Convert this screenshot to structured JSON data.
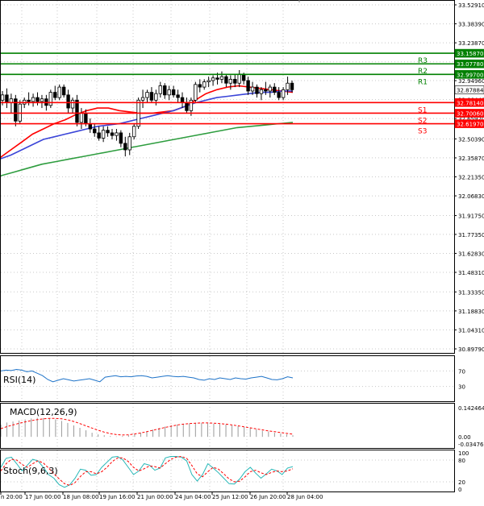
{
  "chart_data": [
    {
      "type": "line",
      "name": "price-panel",
      "yticks": [
        33.5291,
        33.3839,
        33.2387,
        33.0935,
        32.9496,
        32.8044,
        32.6592,
        32.5039,
        32.3587,
        32.2135,
        32.0683,
        31.9175,
        31.7735,
        31.6283,
        31.4831,
        31.3335,
        31.1883,
        31.0431,
        30.8979
      ],
      "ylim": [
        30.8979,
        33.5291
      ],
      "price_badges": [
        {
          "text": "33.15870",
          "value": 33.1587,
          "color": "#008000"
        },
        {
          "text": "33.07780",
          "value": 33.0778,
          "color": "#008000"
        },
        {
          "text": "32.99700",
          "value": 32.997,
          "color": "#008000"
        },
        {
          "text": "32.87884",
          "value": 32.87884,
          "color": "#ffffff"
        },
        {
          "text": "32.78140",
          "value": 32.7814,
          "color": "#ff0000"
        },
        {
          "text": "32.70060",
          "value": 32.7006,
          "color": "#ff0000"
        },
        {
          "text": "32.61970",
          "value": 32.6197,
          "color": "#ff0000"
        }
      ],
      "levels": [
        {
          "label": "R3",
          "value": 33.1587,
          "color": "#008000"
        },
        {
          "label": "R2",
          "value": 33.0778,
          "color": "#008000"
        },
        {
          "label": "R1",
          "value": 32.997,
          "color": "#008000"
        },
        {
          "label": "S1",
          "value": 32.7814,
          "color": "#ff0000"
        },
        {
          "label": "S2",
          "value": 32.7006,
          "color": "#ff0000"
        },
        {
          "label": "S3",
          "value": 32.6197,
          "color": "#ff0000"
        }
      ],
      "candles": [
        {
          "o": 32.8,
          "h": 32.87,
          "l": 32.76,
          "c": 32.84
        },
        {
          "o": 32.84,
          "h": 32.89,
          "l": 32.74,
          "c": 32.78
        },
        {
          "o": 32.78,
          "h": 32.85,
          "l": 32.7,
          "c": 32.81
        },
        {
          "o": 32.81,
          "h": 32.84,
          "l": 32.6,
          "c": 32.64
        },
        {
          "o": 32.64,
          "h": 32.8,
          "l": 32.62,
          "c": 32.77
        },
        {
          "o": 32.77,
          "h": 32.82,
          "l": 32.74,
          "c": 32.8
        },
        {
          "o": 32.8,
          "h": 32.86,
          "l": 32.76,
          "c": 32.79
        },
        {
          "o": 32.79,
          "h": 32.85,
          "l": 32.75,
          "c": 32.82
        },
        {
          "o": 32.82,
          "h": 32.86,
          "l": 32.76,
          "c": 32.79
        },
        {
          "o": 32.79,
          "h": 32.84,
          "l": 32.74,
          "c": 32.81
        },
        {
          "o": 32.81,
          "h": 32.84,
          "l": 32.72,
          "c": 32.76
        },
        {
          "o": 32.76,
          "h": 32.88,
          "l": 32.74,
          "c": 32.86
        },
        {
          "o": 32.86,
          "h": 32.91,
          "l": 32.8,
          "c": 32.82
        },
        {
          "o": 32.82,
          "h": 32.92,
          "l": 32.8,
          "c": 32.9
        },
        {
          "o": 32.9,
          "h": 32.92,
          "l": 32.82,
          "c": 32.84
        },
        {
          "o": 32.84,
          "h": 32.88,
          "l": 32.7,
          "c": 32.74
        },
        {
          "o": 32.74,
          "h": 32.82,
          "l": 32.7,
          "c": 32.8
        },
        {
          "o": 32.8,
          "h": 32.84,
          "l": 32.6,
          "c": 32.63
        },
        {
          "o": 32.63,
          "h": 32.74,
          "l": 32.58,
          "c": 32.7
        },
        {
          "o": 32.7,
          "h": 32.73,
          "l": 32.6,
          "c": 32.62
        },
        {
          "o": 32.62,
          "h": 32.66,
          "l": 32.55,
          "c": 32.58
        },
        {
          "o": 32.58,
          "h": 32.62,
          "l": 32.52,
          "c": 32.55
        },
        {
          "o": 32.55,
          "h": 32.6,
          "l": 32.49,
          "c": 32.51
        },
        {
          "o": 32.51,
          "h": 32.6,
          "l": 32.48,
          "c": 32.57
        },
        {
          "o": 32.57,
          "h": 32.6,
          "l": 32.52,
          "c": 32.55
        },
        {
          "o": 32.55,
          "h": 32.58,
          "l": 32.5,
          "c": 32.53
        },
        {
          "o": 32.53,
          "h": 32.58,
          "l": 32.49,
          "c": 32.55
        },
        {
          "o": 32.55,
          "h": 32.57,
          "l": 32.44,
          "c": 32.47
        },
        {
          "o": 32.47,
          "h": 32.52,
          "l": 32.37,
          "c": 32.42
        },
        {
          "o": 32.42,
          "h": 32.55,
          "l": 32.38,
          "c": 32.52
        },
        {
          "o": 32.52,
          "h": 32.62,
          "l": 32.5,
          "c": 32.6
        },
        {
          "o": 32.6,
          "h": 32.82,
          "l": 32.58,
          "c": 32.8
        },
        {
          "o": 32.8,
          "h": 32.88,
          "l": 32.74,
          "c": 32.82
        },
        {
          "o": 32.82,
          "h": 32.88,
          "l": 32.78,
          "c": 32.86
        },
        {
          "o": 32.86,
          "h": 32.9,
          "l": 32.78,
          "c": 32.8
        },
        {
          "o": 32.8,
          "h": 32.88,
          "l": 32.76,
          "c": 32.85
        },
        {
          "o": 32.85,
          "h": 32.94,
          "l": 32.82,
          "c": 32.91
        },
        {
          "o": 32.91,
          "h": 32.93,
          "l": 32.81,
          "c": 32.84
        },
        {
          "o": 32.84,
          "h": 32.91,
          "l": 32.8,
          "c": 32.88
        },
        {
          "o": 32.88,
          "h": 32.91,
          "l": 32.82,
          "c": 32.84
        },
        {
          "o": 32.84,
          "h": 32.88,
          "l": 32.78,
          "c": 32.82
        },
        {
          "o": 32.82,
          "h": 32.86,
          "l": 32.74,
          "c": 32.78
        },
        {
          "o": 32.78,
          "h": 32.82,
          "l": 32.7,
          "c": 32.72
        },
        {
          "o": 32.72,
          "h": 32.82,
          "l": 32.68,
          "c": 32.8
        },
        {
          "o": 32.8,
          "h": 32.94,
          "l": 32.78,
          "c": 32.92
        },
        {
          "o": 32.92,
          "h": 32.96,
          "l": 32.86,
          "c": 32.9
        },
        {
          "o": 32.9,
          "h": 32.96,
          "l": 32.88,
          "c": 32.94
        },
        {
          "o": 32.94,
          "h": 32.98,
          "l": 32.9,
          "c": 32.95
        },
        {
          "o": 32.95,
          "h": 32.99,
          "l": 32.91,
          "c": 32.97
        },
        {
          "o": 32.97,
          "h": 33.01,
          "l": 32.92,
          "c": 32.96
        },
        {
          "o": 32.96,
          "h": 33.02,
          "l": 32.93,
          "c": 32.98
        },
        {
          "o": 32.98,
          "h": 33.0,
          "l": 32.9,
          "c": 32.93
        },
        {
          "o": 32.93,
          "h": 32.99,
          "l": 32.88,
          "c": 32.96
        },
        {
          "o": 32.96,
          "h": 33.0,
          "l": 32.9,
          "c": 32.93
        },
        {
          "o": 32.93,
          "h": 33.03,
          "l": 32.9,
          "c": 33.0
        },
        {
          "o": 33.0,
          "h": 33.01,
          "l": 32.92,
          "c": 32.95
        },
        {
          "o": 32.95,
          "h": 32.98,
          "l": 32.84,
          "c": 32.87
        },
        {
          "o": 32.87,
          "h": 32.94,
          "l": 32.84,
          "c": 32.9
        },
        {
          "o": 32.9,
          "h": 32.92,
          "l": 32.82,
          "c": 32.85
        },
        {
          "o": 32.85,
          "h": 32.9,
          "l": 32.8,
          "c": 32.88
        },
        {
          "o": 32.88,
          "h": 32.94,
          "l": 32.84,
          "c": 32.87
        },
        {
          "o": 32.87,
          "h": 32.92,
          "l": 32.82,
          "c": 32.9
        },
        {
          "o": 32.9,
          "h": 32.93,
          "l": 32.84,
          "c": 32.86
        },
        {
          "o": 32.86,
          "h": 32.9,
          "l": 32.8,
          "c": 32.82
        },
        {
          "o": 32.82,
          "h": 32.9,
          "l": 32.8,
          "c": 32.88
        },
        {
          "o": 32.88,
          "h": 32.98,
          "l": 32.84,
          "c": 32.93
        },
        {
          "o": 32.93,
          "h": 32.95,
          "l": 32.86,
          "c": 32.88
        }
      ],
      "series": [
        {
          "name": "",
          "color": "#ff0000",
          "values": [
            32.36,
            32.42,
            32.48,
            32.54,
            32.58,
            32.62,
            32.65,
            32.69,
            32.72,
            32.74,
            32.74,
            32.72,
            32.71,
            32.7,
            32.7,
            32.71,
            32.72,
            32.75,
            32.8,
            32.85,
            32.88,
            32.9,
            32.91,
            32.9,
            32.89,
            32.88,
            32.87,
            32.86
          ]
        },
        {
          "name": "",
          "color": "#3b45d8",
          "values": [
            32.35,
            32.38,
            32.42,
            32.46,
            32.5,
            32.52,
            32.54,
            32.56,
            32.58,
            32.6,
            32.61,
            32.62,
            32.64,
            32.66,
            32.68,
            32.7,
            32.72,
            32.75,
            32.78,
            32.8,
            32.82,
            32.83,
            32.84,
            32.85,
            32.86,
            32.86,
            32.87,
            32.87
          ]
        },
        {
          "name": "",
          "color": "#2e9d3f",
          "values": [
            32.22,
            32.25,
            32.28,
            32.31,
            32.33,
            32.35,
            32.37,
            32.39,
            32.41,
            32.43,
            32.45,
            32.47,
            32.49,
            32.51,
            32.53,
            32.55,
            32.57,
            32.59,
            32.6,
            32.61,
            32.62,
            32.63
          ]
        }
      ],
      "ma_x_extent": [
        0,
        363
      ]
    },
    {
      "type": "line",
      "name": "rsi-panel",
      "title": "RSI(14)",
      "yticks": [
        70,
        30
      ],
      "ylim": [
        0,
        100
      ],
      "series": [
        {
          "name": "RSI(14)",
          "color": "#1e73c8",
          "values": [
            70,
            72,
            71,
            74,
            72,
            68,
            70,
            64,
            58,
            48,
            42,
            46,
            50,
            47,
            44,
            46,
            48,
            50,
            46,
            42,
            54,
            56,
            58,
            55,
            56,
            55,
            57,
            58,
            56,
            52,
            54,
            56,
            58,
            56,
            55,
            56,
            54,
            52,
            48,
            46,
            50,
            48,
            52,
            50,
            48,
            52,
            50,
            49,
            52,
            54,
            56,
            52,
            48,
            47,
            50,
            55,
            52
          ]
        }
      ]
    },
    {
      "type": "bar",
      "name": "macd-panel",
      "title": "MACD(12,26,9)",
      "yticks": [
        0.142464,
        0.0,
        -0.034769
      ],
      "ylim": [
        -0.034769,
        0.142464
      ],
      "tick_labels": [
        "0.142464",
        "0.00",
        "-0.034769"
      ],
      "histogram": [
        0.06,
        0.07,
        0.075,
        0.08,
        0.085,
        0.09,
        0.093,
        0.092,
        0.09,
        0.085,
        0.078,
        0.068,
        0.056,
        0.044,
        0.032,
        0.02,
        0.012,
        0.008,
        0.004,
        0.002,
        0.004,
        0.008,
        0.014,
        0.02,
        0.028,
        0.035,
        0.043,
        0.05,
        0.056,
        0.06,
        0.063,
        0.065,
        0.066,
        0.067,
        0.066,
        0.064,
        0.062,
        0.06,
        0.056,
        0.052,
        0.048,
        0.042,
        0.036,
        0.03,
        0.026,
        0.02,
        0.016,
        0.012,
        0.008
      ],
      "signal": [
        0.04,
        0.05,
        0.058,
        0.066,
        0.073,
        0.079,
        0.084,
        0.088,
        0.09,
        0.09,
        0.088,
        0.083,
        0.075,
        0.065,
        0.054,
        0.043,
        0.032,
        0.023,
        0.016,
        0.011,
        0.009,
        0.01,
        0.014,
        0.019,
        0.025,
        0.032,
        0.039,
        0.046,
        0.052,
        0.058,
        0.062,
        0.065,
        0.067,
        0.068,
        0.068,
        0.067,
        0.065,
        0.062,
        0.058,
        0.054,
        0.049,
        0.044,
        0.039,
        0.034,
        0.029,
        0.025,
        0.021,
        0.017,
        0.013
      ],
      "signal_color": "#ff0000",
      "histogram_color": "#9a9a9a"
    },
    {
      "type": "line",
      "name": "stoch-panel",
      "title": "Stoch(9,6,3)",
      "yticks": [
        100,
        80,
        20,
        0
      ],
      "ylim": [
        0,
        100
      ],
      "series": [
        {
          "name": "",
          "color": "#26b7b7",
          "values": [
            60,
            85,
            88,
            70,
            50,
            66,
            82,
            78,
            60,
            40,
            30,
            12,
            5,
            12,
            30,
            55,
            52,
            38,
            40,
            60,
            74,
            88,
            90,
            80,
            60,
            40,
            50,
            70,
            66,
            52,
            58,
            86,
            90,
            90,
            88,
            78,
            40,
            22,
            40,
            70,
            58,
            45,
            30,
            15,
            14,
            28,
            48,
            60,
            44,
            30,
            42,
            55,
            50,
            40,
            58,
            62
          ]
        },
        {
          "name": "",
          "color": "#ff0000",
          "values": [
            50,
            70,
            82,
            80,
            68,
            60,
            70,
            78,
            72,
            58,
            42,
            28,
            15,
            10,
            18,
            35,
            48,
            48,
            42,
            48,
            60,
            76,
            86,
            86,
            76,
            60,
            50,
            56,
            64,
            62,
            58,
            70,
            82,
            88,
            90,
            85,
            65,
            42,
            34,
            48,
            60,
            55,
            42,
            28,
            20,
            22,
            34,
            48,
            52,
            45,
            40,
            46,
            50,
            48,
            50,
            56
          ]
        }
      ]
    }
  ],
  "x_axis": {
    "labels": [
      "n 20:00",
      "17 Jun 00:00",
      "18 Jun 08:00",
      "19 Jun 16:00",
      "21 Jun 00:00",
      "24 Jun 04:00",
      "25 Jun 12:00",
      "26 Jun 20:00",
      "28 Jun 04:00"
    ]
  }
}
